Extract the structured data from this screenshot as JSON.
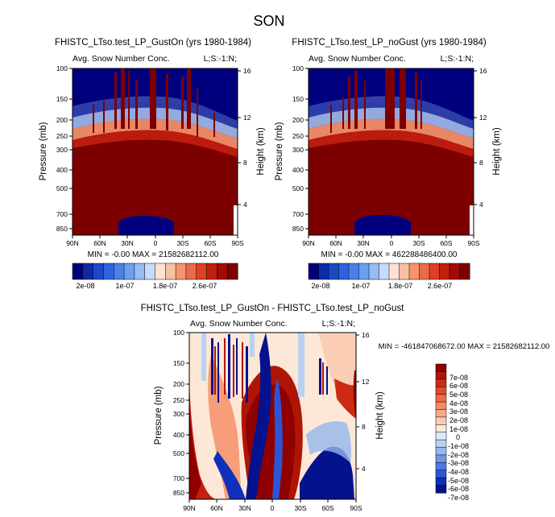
{
  "chart_data": {
    "type": "heatmap",
    "title": "SON",
    "panels": [
      {
        "id": "gust_on",
        "title": "FHISTC_LTso.test_LP_GustOn (yrs 1980-1984)",
        "subtitle_left": "Avg. Snow Number Conc.",
        "subtitle_right": "L;S:-1:N;",
        "ylabel": "Pressure (mb)",
        "ylabel_right": "Height (km)",
        "x_ticks": [
          "90N",
          "60N",
          "30N",
          "0",
          "30S",
          "60S",
          "90S"
        ],
        "x_values": [
          90,
          60,
          30,
          0,
          -30,
          -60,
          -90
        ],
        "y_ticks": [
          "100",
          "150",
          "200",
          "250",
          "300",
          "400",
          "500",
          "700",
          "850"
        ],
        "y_values": [
          100,
          150,
          200,
          250,
          300,
          400,
          500,
          700,
          850
        ],
        "y_right_ticks": [
          "16",
          "12",
          "8",
          "4"
        ],
        "y_right_values": [
          16,
          12,
          8,
          4
        ],
        "ylim": [
          100,
          900
        ],
        "minmax_text": "MIN = -0.00  MAX = 21582682112.00",
        "min": -0.0,
        "max": 21582682112.0
      },
      {
        "id": "no_gust",
        "title": "FHISTC_LTso.test_LP_noGust (yrs 1980-1984)",
        "subtitle_left": "Avg. Snow Number Conc.",
        "subtitle_right": "L;S:-1:N;",
        "ylabel": "Pressure (mb)",
        "ylabel_right": "Height (km)",
        "x_ticks": [
          "90N",
          "60N",
          "30N",
          "0",
          "30S",
          "60S",
          "90S"
        ],
        "x_values": [
          90,
          60,
          30,
          0,
          -30,
          -60,
          -90
        ],
        "y_ticks": [
          "100",
          "150",
          "200",
          "250",
          "300",
          "400",
          "500",
          "700",
          "850"
        ],
        "y_values": [
          100,
          150,
          200,
          250,
          300,
          400,
          500,
          700,
          850
        ],
        "y_right_ticks": [
          "16",
          "12",
          "8",
          "4"
        ],
        "y_right_values": [
          16,
          12,
          8,
          4
        ],
        "ylim": [
          100,
          900
        ],
        "minmax_text": "MIN = -0.00  MAX = 462288486400.00",
        "min": -0.0,
        "max": 462288486400.0
      },
      {
        "id": "difference",
        "title": "FHISTC_LTso.test_LP_GustOn - FHISTC_LTso.test_LP_noGust",
        "subtitle_left": "Avg. Snow Number Conc.",
        "subtitle_right": "L;S:-1:N;",
        "ylabel": "Pressure (mb)",
        "ylabel_right": "Height (km)",
        "x_ticks": [
          "90N",
          "60N",
          "30N",
          "0",
          "30S",
          "60S",
          "90S"
        ],
        "x_values": [
          90,
          60,
          30,
          0,
          -30,
          -60,
          -90
        ],
        "y_ticks": [
          "100",
          "150",
          "200",
          "250",
          "300",
          "400",
          "500",
          "700",
          "850"
        ],
        "y_values": [
          100,
          150,
          200,
          250,
          300,
          400,
          500,
          700,
          850
        ],
        "y_right_ticks": [
          "16",
          "12",
          "8",
          "4"
        ],
        "y_right_values": [
          16,
          12,
          8,
          4
        ],
        "ylim": [
          100,
          900
        ],
        "minmax_text": "MIN = -461847068672.00  MAX = 21582682112.00",
        "min": -461847068672.0,
        "max": 21582682112.0
      }
    ],
    "colorbar_top": {
      "orientation": "horizontal",
      "labels": [
        "2e-08",
        "1e-07",
        "1.8e-07",
        "2.6e-07"
      ],
      "colors": [
        "#00007f",
        "#0d2ba8",
        "#1c48c6",
        "#2c64dd",
        "#4a80ea",
        "#6e9ef2",
        "#96bcf6",
        "#c4dcfa",
        "#fbe3d3",
        "#f8bfa0",
        "#f49570",
        "#ec6a46",
        "#dc4025",
        "#c21f10",
        "#a20a05",
        "#7d0000"
      ]
    },
    "colorbar_diff": {
      "orientation": "vertical",
      "labels": [
        "7e-08",
        "6e-08",
        "5e-08",
        "4e-08",
        "3e-08",
        "2e-08",
        "1e-08",
        "0",
        "-1e-08",
        "-2e-08",
        "-3e-08",
        "-4e-08",
        "-5e-08",
        "-6e-08",
        "-7e-08"
      ],
      "colors": [
        "#8f0000",
        "#b01504",
        "#cc2b12",
        "#e44a28",
        "#f06944",
        "#f58a63",
        "#f8ab88",
        "#fbcbaf",
        "#fde8d8",
        "#d9e9f8",
        "#b9d2f3",
        "#93b6ee",
        "#6f97e8",
        "#4d78e2",
        "#2c55d6",
        "#1030bb",
        "#04128d"
      ]
    }
  }
}
